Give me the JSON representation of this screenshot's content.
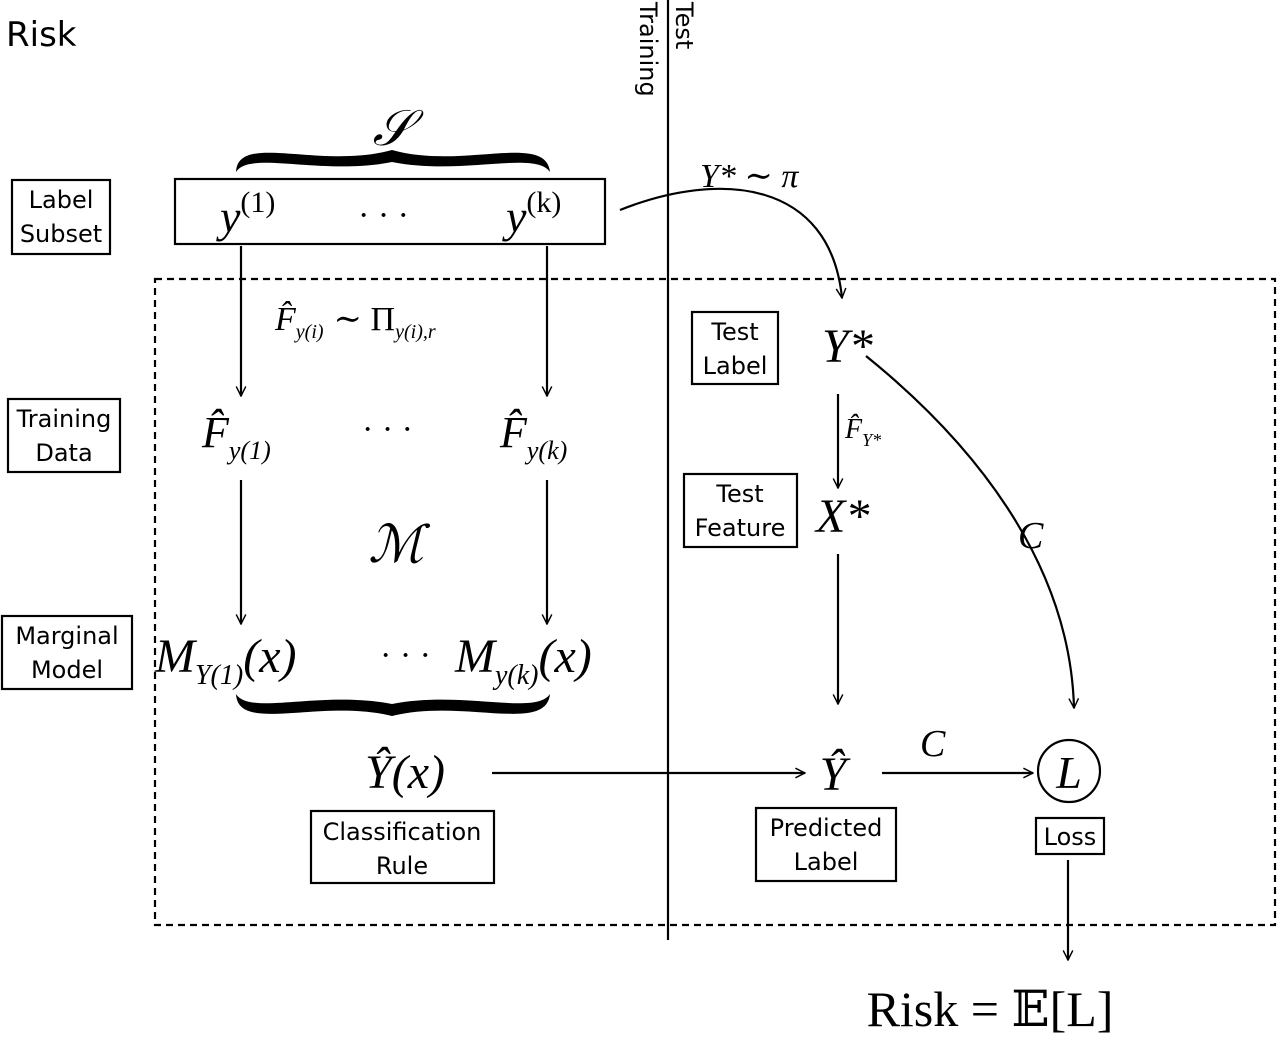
{
  "title": "Risk",
  "phases": {
    "training": "Training",
    "test": "Test"
  },
  "left_labels": {
    "label_subset": [
      "Label",
      "Subset"
    ],
    "training_data": [
      "Training",
      "Data"
    ],
    "marginal_model": [
      "Marginal",
      "Model"
    ]
  },
  "right_labels": {
    "test_label": [
      "Test",
      "Label"
    ],
    "test_feature": [
      "Test",
      "Feature"
    ],
    "predicted_label": [
      "Predicted",
      "Label"
    ],
    "loss": "Loss"
  },
  "classification_rule": [
    "Classification",
    "Rule"
  ],
  "math": {
    "S": "𝒮",
    "y1": "y",
    "y1_sup": "(1)",
    "yk": "y",
    "yk_sup": "(k)",
    "ellipsis": "· · ·",
    "ystar_pi": "Y* ∼ π",
    "sampling": "F̂",
    "sampling_sub": "y(i)",
    "sampling_rest": "∼ Π",
    "sampling_rest_sub": "y(i),r",
    "F1": "F̂",
    "F1_sub": "y(1)",
    "Fk": "F̂",
    "Fk_sub": "y(k)",
    "M": "ℳ",
    "M1": "M",
    "M1_sub": "Y(1)",
    "M1_arg": "(x)",
    "Mk": "M",
    "Mk_sub": "y(k)",
    "Mk_arg": "(x)",
    "Yhat_x": "Ŷ(x)",
    "Ystar": "Y*",
    "FY": "F̂",
    "FY_sub": "Y*",
    "Xstar": "X*",
    "C_curve": "C",
    "Yhat": "Ŷ",
    "C_arrow": "C",
    "L": "L",
    "risk_eq": "Risk = 𝔼[L]"
  }
}
